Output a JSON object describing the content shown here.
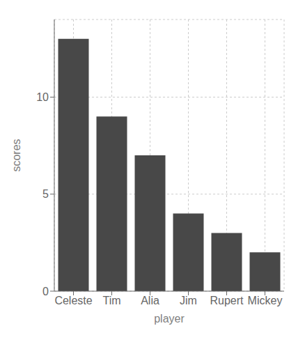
{
  "chart_data": {
    "type": "bar",
    "categories": [
      "Celeste",
      "Tim",
      "Alia",
      "Jim",
      "Rupert",
      "Mickey"
    ],
    "values": [
      13,
      9,
      7,
      4,
      3,
      2
    ],
    "color": "#484848",
    "xlabel": "player",
    "ylabel": "scores",
    "ylim": [
      0,
      14
    ],
    "yticks": [
      0,
      5,
      10
    ],
    "grid": true
  }
}
